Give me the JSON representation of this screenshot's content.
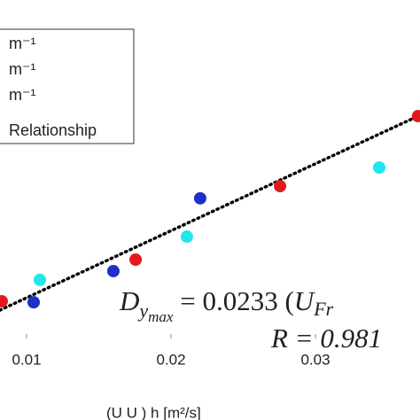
{
  "chart_data": {
    "type": "scatter",
    "x_label": "(U        U       ) h [m²/s]",
    "series": [
      {
        "name": "m⁻¹",
        "color": "#e31a1c",
        "x": [
          0.00828,
          0.01755,
          0.02755,
          0.0371
        ],
        "values": [
          1.1,
          2.33,
          4.5,
          6.57
        ]
      },
      {
        "name": "m⁻¹",
        "color": "#1f2fc8",
        "x": [
          0.01049,
          0.01601,
          0.02202
        ],
        "values": [
          1.07,
          1.99,
          4.14
        ]
      },
      {
        "name": "m⁻¹",
        "color": "#22e5ee",
        "x": [
          0.01092,
          0.0211,
          0.03442
        ],
        "values": [
          1.73,
          3.01,
          5.05
        ]
      }
    ],
    "fit": {
      "name": "Relationship",
      "color": "#000000",
      "x": [
        0.00816,
        0.03724
      ],
      "values": [
        0.838,
        6.597
      ]
    },
    "annotations": {
      "lhs": "D",
      "lhs_sub": "y",
      "lhs_subsub": "max",
      "rhs": " =  0.0233 (",
      "rhs_var": "U",
      "rhs_sub": "Fr",
      "r_line": "R = 0.981"
    },
    "xlim": [
      0.00816,
      0.03724
    ],
    "ylim": [
      0,
      10
    ],
    "xticks": [
      0.01,
      0.02,
      0.03
    ]
  }
}
